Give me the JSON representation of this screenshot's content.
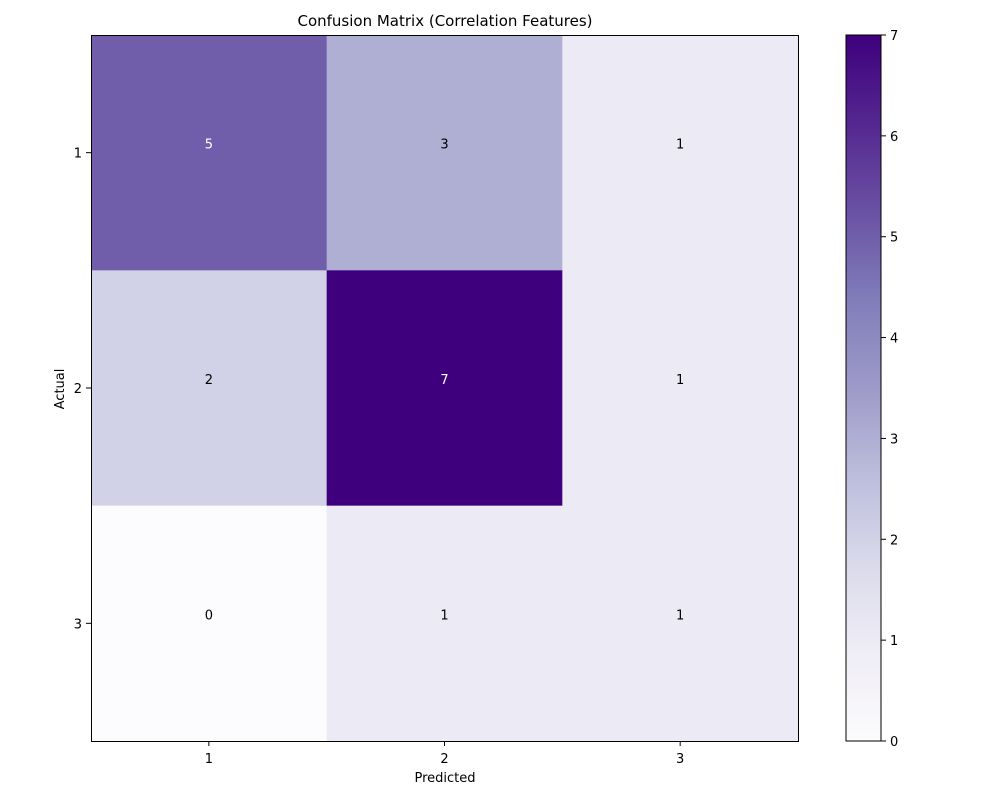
{
  "chart_data": {
    "type": "heatmap",
    "title": "Confusion Matrix (Correlation Features)",
    "xlabel": "Predicted",
    "ylabel": "Actual",
    "x_categories": [
      "1",
      "2",
      "3"
    ],
    "y_categories": [
      "1",
      "2",
      "3"
    ],
    "values": [
      [
        5,
        3,
        1
      ],
      [
        2,
        7,
        1
      ],
      [
        0,
        1,
        1
      ]
    ],
    "colormap": "Purples",
    "color_range": [
      0,
      7
    ],
    "colorbar_ticks": [
      "0",
      "1",
      "2",
      "3",
      "4",
      "5",
      "6",
      "7"
    ],
    "colors": {
      "low": "#fcfbfd",
      "high": "#3f007d"
    },
    "grid": false
  }
}
